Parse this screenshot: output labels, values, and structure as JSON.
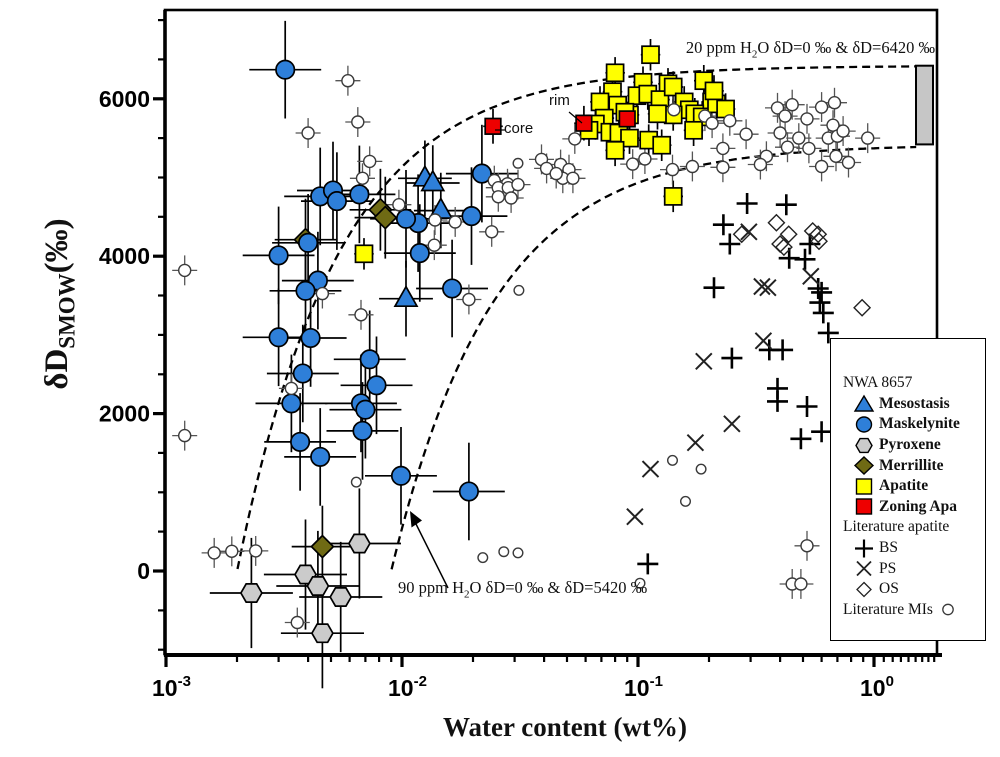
{
  "chart_data": {
    "type": "scatter",
    "xlabel": "Water content (wt%)",
    "ylabel": {
      "main": "δD",
      "sub": "SMOW",
      "unit": "(‰)"
    },
    "x_scale": "log",
    "x_range": [
      0.001,
      1.85
    ],
    "y_range": [
      -1080,
      7200
    ],
    "grid": false,
    "x_ticks": [
      {
        "base": "10",
        "exp": "-3",
        "value": 0.001
      },
      {
        "base": "10",
        "exp": "-2",
        "value": 0.01
      },
      {
        "base": "10",
        "exp": "-1",
        "value": 0.1
      },
      {
        "base": "10",
        "exp": "0",
        "value": 1
      }
    ],
    "y_ticks": [
      {
        "label": "0",
        "value": 0
      },
      {
        "label": "2000",
        "value": 2000
      },
      {
        "label": "4000",
        "value": 4000
      },
      {
        "label": "6000",
        "value": 6000
      }
    ],
    "annotations": {
      "curve20": {
        "pre": "20 ppm H",
        "sub": "2",
        "post": "O δD=0 ‰ & δD=6420 ‰"
      },
      "curve90": {
        "pre": "90 ppm H",
        "sub": "2",
        "post": "O δD=0 ‰ & δD=5420 ‰"
      },
      "rim": "rim",
      "core": "core"
    },
    "curves": [
      {
        "name": "mixing-20ppm",
        "c0_wt": 0.002,
        "dmax": 6420,
        "end_c": 1.51
      },
      {
        "name": "mixing-90ppm",
        "c0_wt": 0.009,
        "dmax": 5420,
        "end_c": 1.51
      }
    ],
    "reservoir_bar": {
      "top_permil": 6420,
      "bottom_permil": 5420,
      "color": "#c6c6c6"
    },
    "colors": {
      "blue": "#2e7fd9",
      "gray": "#cbcbcb",
      "olive": "#6f6a14",
      "yellow": "#ffff00",
      "red": "#ee0000",
      "mi_stroke": "#3a3a3a",
      "black": "#000000"
    },
    "series": [
      {
        "key": "bs",
        "name": "BS",
        "marker": "plus",
        "color": "#000000",
        "points": [
          [
            0.29,
            4670
          ],
          [
            0.425,
            4655
          ],
          [
            0.23,
            4400
          ],
          [
            0.245,
            4155
          ],
          [
            0.535,
            4155
          ],
          [
            0.437,
            3975
          ],
          [
            0.51,
            3960
          ],
          [
            0.21,
            3600
          ],
          [
            0.58,
            3590
          ],
          [
            0.6,
            3540
          ],
          [
            0.59,
            3410
          ],
          [
            0.61,
            3280
          ],
          [
            0.64,
            3025
          ],
          [
            0.25,
            2705
          ],
          [
            0.36,
            2810
          ],
          [
            0.41,
            2810
          ],
          [
            0.39,
            2320
          ],
          [
            0.39,
            2155
          ],
          [
            0.52,
            2090
          ],
          [
            0.49,
            1680
          ],
          [
            0.6,
            1770
          ],
          [
            0.11,
            90
          ]
        ]
      },
      {
        "key": "ps",
        "name": "PS",
        "marker": "x",
        "color": "#222222",
        "points": [
          [
            0.295,
            4310
          ],
          [
            0.335,
            3615
          ],
          [
            0.355,
            3600
          ],
          [
            0.54,
            3745
          ],
          [
            0.34,
            2925
          ],
          [
            0.19,
            2665
          ],
          [
            0.25,
            1870
          ],
          [
            0.175,
            1630
          ],
          [
            0.113,
            1295
          ],
          [
            0.097,
            690
          ]
        ]
      },
      {
        "key": "os",
        "name": "OS",
        "marker": "diamond-open",
        "color": "#222222",
        "points": [
          [
            0.386,
            4425
          ],
          [
            0.435,
            4280
          ],
          [
            0.4,
            4155
          ],
          [
            0.415,
            4115
          ],
          [
            0.55,
            4320
          ],
          [
            0.58,
            4280
          ],
          [
            0.585,
            4190
          ],
          [
            0.275,
            4280
          ],
          [
            0.89,
            3345
          ]
        ]
      },
      {
        "key": "apatite",
        "name": "Apatite",
        "marker": "square",
        "color": "#ffff00",
        "xerr_factor": 1.1,
        "yerr": 200,
        "points": [
          [
            0.08,
            6330
          ],
          [
            0.105,
            6210
          ],
          [
            0.134,
            6190
          ],
          [
            0.078,
            6090
          ],
          [
            0.069,
            5960
          ],
          [
            0.099,
            6040
          ],
          [
            0.11,
            6060
          ],
          [
            0.124,
            5990
          ],
          [
            0.141,
            6150
          ],
          [
            0.157,
            5960
          ],
          [
            0.205,
            5960
          ],
          [
            0.165,
            5860
          ],
          [
            0.174,
            5810
          ],
          [
            0.187,
            5770
          ],
          [
            0.141,
            5795
          ],
          [
            0.121,
            5810
          ],
          [
            0.092,
            5795
          ],
          [
            0.082,
            5920
          ],
          [
            0.088,
            5830
          ],
          [
            0.072,
            5755
          ],
          [
            0.066,
            5680
          ],
          [
            0.076,
            5575
          ],
          [
            0.083,
            5565
          ],
          [
            0.092,
            5500
          ],
          [
            0.111,
            5475
          ],
          [
            0.126,
            5410
          ],
          [
            0.08,
            5345
          ],
          [
            0.172,
            5600
          ],
          [
            0.215,
            5935
          ],
          [
            0.19,
            6230
          ],
          [
            0.21,
            6100
          ],
          [
            0.235,
            5870
          ],
          [
            0.062,
            5600
          ],
          [
            0.113,
            6560
          ],
          [
            0.141,
            4760
          ],
          [
            0.0069,
            4030
          ]
        ]
      },
      {
        "key": "zoning",
        "name": "Zoning Apa",
        "marker": "square-red",
        "color": "#ee0000",
        "xerr_factor": 1.1,
        "yerr": 220,
        "points": [
          [
            0.0243,
            5650
          ],
          [
            0.059,
            5690
          ],
          [
            0.09,
            5745
          ]
        ]
      },
      {
        "key": "merrillite",
        "name": "Merrillite",
        "marker": "diamond",
        "color": "#6f6a14",
        "xerr_factor": 1.35,
        "yerr": 520,
        "points": [
          [
            0.0039,
            4210
          ],
          [
            0.0081,
            4590
          ],
          [
            0.0085,
            4490
          ],
          [
            0.0046,
            310
          ]
        ]
      },
      {
        "key": "pyroxene",
        "name": "Pyroxene",
        "marker": "hexagon",
        "color": "#cbcbcb",
        "xerr_factor": 1.5,
        "yerr": 700,
        "points": [
          [
            0.0023,
            -280
          ],
          [
            0.0039,
            -45
          ],
          [
            0.0044,
            -190
          ],
          [
            0.0055,
            -330
          ],
          [
            0.0066,
            350
          ],
          [
            0.0046,
            -790
          ]
        ]
      },
      {
        "key": "mesostasis",
        "name": "Mesostasis",
        "marker": "triangle",
        "color": "#2e7fd9",
        "xerr_factor": 1.3,
        "yerr": 480,
        "points": [
          [
            0.0125,
            4990
          ],
          [
            0.0135,
            4930
          ],
          [
            0.0146,
            4580
          ],
          [
            0.0104,
            3460
          ]
        ]
      },
      {
        "key": "maskelynite",
        "name": "Maskelynite",
        "marker": "circle",
        "color": "#2e7fd9",
        "xerr_factor": 1.42,
        "yerr": 620,
        "points": [
          [
            0.0032,
            6370
          ],
          [
            0.0044,
            3690
          ],
          [
            0.0039,
            3560
          ],
          [
            0.003,
            2970
          ],
          [
            0.0041,
            2960
          ],
          [
            0.0038,
            2510
          ],
          [
            0.0034,
            2130
          ],
          [
            0.0073,
            2690
          ],
          [
            0.0078,
            2360
          ],
          [
            0.0067,
            2130
          ],
          [
            0.007,
            2050
          ],
          [
            0.0068,
            1780
          ],
          [
            0.0037,
            1640
          ],
          [
            0.0045,
            1450
          ],
          [
            0.0099,
            1210
          ],
          [
            0.0192,
            1010
          ],
          [
            0.0163,
            3590
          ],
          [
            0.0197,
            4510
          ],
          [
            0.0218,
            5050
          ],
          [
            0.0119,
            4040
          ],
          [
            0.0117,
            4420
          ],
          [
            0.0104,
            4475
          ],
          [
            0.0045,
            4760
          ],
          [
            0.0051,
            4835
          ],
          [
            0.0066,
            4785
          ],
          [
            0.004,
            4170
          ],
          [
            0.003,
            4010
          ],
          [
            0.0053,
            4700
          ]
        ]
      },
      {
        "key": "mis",
        "name": "Literature MIs",
        "marker": "circle-open",
        "color": "#3a3a3a",
        "xerr_factor": 1.13,
        "yerr": 190,
        "points": [
          [
            0.0012,
            3820,
            1
          ],
          [
            0.0012,
            1720,
            1
          ],
          [
            0.0016,
            230,
            1
          ],
          [
            0.0019,
            250,
            1
          ],
          [
            0.0024,
            255,
            1
          ],
          [
            0.0036,
            -655,
            1
          ],
          [
            0.0059,
            6230,
            1
          ],
          [
            0.0065,
            5705,
            1
          ],
          [
            0.004,
            5565,
            1
          ],
          [
            0.0073,
            5205,
            1
          ],
          [
            0.0068,
            4990,
            1
          ],
          [
            0.0097,
            4655,
            1
          ],
          [
            0.0067,
            3255,
            1
          ],
          [
            0.0034,
            2320,
            1
          ],
          [
            0.0046,
            3525,
            1
          ],
          [
            0.0064,
            1130,
            0
          ],
          [
            0.0138,
            4460,
            1
          ],
          [
            0.0168,
            4435,
            1
          ],
          [
            0.0137,
            4140,
            1
          ],
          [
            0.024,
            4310,
            1
          ],
          [
            0.0246,
            4960,
            1
          ],
          [
            0.028,
            4920,
            1
          ],
          [
            0.0256,
            4870,
            1
          ],
          [
            0.0282,
            4870,
            1
          ],
          [
            0.0256,
            4755,
            1
          ],
          [
            0.029,
            4740,
            1
          ],
          [
            0.031,
            4910,
            1
          ],
          [
            0.031,
            5180,
            0
          ],
          [
            0.039,
            5230,
            1
          ],
          [
            0.041,
            5115,
            1
          ],
          [
            0.047,
            5165,
            1
          ],
          [
            0.051,
            5100,
            1
          ],
          [
            0.054,
            5490,
            1
          ],
          [
            0.048,
            4990,
            1
          ],
          [
            0.053,
            4990,
            1
          ],
          [
            0.045,
            5050,
            1
          ],
          [
            0.0192,
            3450,
            1
          ],
          [
            0.0313,
            3565,
            0
          ],
          [
            0.022,
            170,
            0
          ],
          [
            0.027,
            245,
            0
          ],
          [
            0.031,
            230,
            0
          ],
          [
            0.095,
            5170,
            1
          ],
          [
            0.107,
            5235,
            1
          ],
          [
            0.14,
            5100,
            1
          ],
          [
            0.17,
            5140,
            1
          ],
          [
            0.142,
            5860,
            1
          ],
          [
            0.192,
            5780,
            1
          ],
          [
            0.206,
            5690,
            1
          ],
          [
            0.245,
            5720,
            1
          ],
          [
            0.229,
            5370,
            1
          ],
          [
            0.287,
            5550,
            1
          ],
          [
            0.39,
            5885,
            1
          ],
          [
            0.45,
            5925,
            1
          ],
          [
            0.42,
            5780,
            1
          ],
          [
            0.6,
            5895,
            1
          ],
          [
            0.68,
            5950,
            1
          ],
          [
            0.52,
            5745,
            1
          ],
          [
            0.67,
            5665,
            1
          ],
          [
            0.4,
            5565,
            1
          ],
          [
            0.43,
            5385,
            1
          ],
          [
            0.48,
            5500,
            1
          ],
          [
            0.53,
            5370,
            1
          ],
          [
            0.64,
            5500,
            1
          ],
          [
            0.7,
            5525,
            1
          ],
          [
            0.74,
            5590,
            1
          ],
          [
            0.94,
            5500,
            1
          ],
          [
            0.35,
            5270,
            1
          ],
          [
            0.33,
            5165,
            1
          ],
          [
            0.229,
            5130,
            1
          ],
          [
            0.6,
            5140,
            1
          ],
          [
            0.69,
            5270,
            1
          ],
          [
            0.78,
            5190,
            1
          ],
          [
            0.14,
            1405,
            0
          ],
          [
            0.185,
            1295,
            0
          ],
          [
            0.159,
            885,
            0
          ],
          [
            0.102,
            -155,
            0
          ],
          [
            0.52,
            320,
            1
          ],
          [
            0.45,
            -165,
            1
          ],
          [
            0.49,
            -165,
            1
          ]
        ]
      }
    ],
    "legend": {
      "position": "right-middle",
      "items": [
        {
          "label": "NWA 8657",
          "type": "header"
        },
        {
          "label": "Mesostasis",
          "marker": "triangle",
          "color": "#2e7fd9"
        },
        {
          "label": "Maskelynite",
          "marker": "circle",
          "color": "#2e7fd9"
        },
        {
          "label": "Pyroxene",
          "marker": "hexagon",
          "color": "#cbcbcb"
        },
        {
          "label": "Merrillite",
          "marker": "diamond",
          "color": "#6f6a14"
        },
        {
          "label": "Apatite",
          "marker": "square",
          "color": "#ffff00"
        },
        {
          "label": "Zoning Apa",
          "marker": "square",
          "color": "#ee0000"
        },
        {
          "label": "Literature apatite",
          "type": "header"
        },
        {
          "label": "BS",
          "marker": "plus",
          "color": "#000000",
          "plain": true
        },
        {
          "label": "PS",
          "marker": "x",
          "color": "#222222",
          "plain": true
        },
        {
          "label": "OS",
          "marker": "diamond-open",
          "color": "#222222",
          "plain": true
        },
        {
          "label": "Literature MIs",
          "marker": "circle-open",
          "color": "#3a3a3a",
          "plain": true,
          "icon_right": true
        }
      ]
    }
  }
}
